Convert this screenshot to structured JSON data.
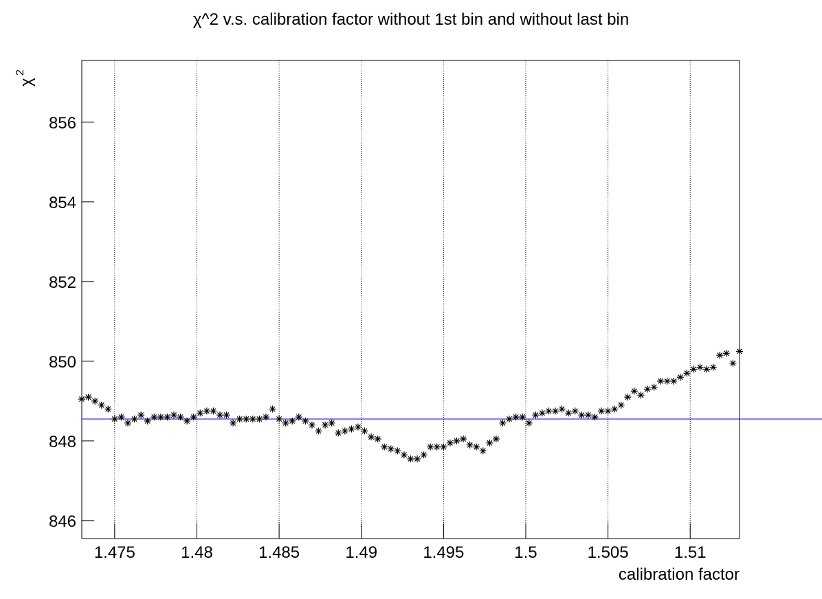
{
  "chart_data": {
    "type": "scatter",
    "title": "χ^2 v.s. calibration factor without 1st bin and without last bin",
    "xlabel": "calibration factor",
    "ylabel": {
      "base": "χ",
      "sup": "2"
    },
    "xlim": [
      1.473,
      1.513
    ],
    "ylim": [
      845.55,
      857.55
    ],
    "xticks": [
      1.475,
      1.48,
      1.485,
      1.49,
      1.495,
      1.5,
      1.505,
      1.51
    ],
    "yticks": [
      846,
      848,
      850,
      852,
      854,
      856
    ],
    "xgrid": true,
    "marker": "asterisk",
    "hline": {
      "value": 848.55,
      "color": "#0000ff"
    },
    "series": [
      {
        "color": "#000000",
        "x": [
          1.473,
          1.4734,
          1.4738,
          1.4742,
          1.4746,
          1.475,
          1.4754,
          1.4758,
          1.4762,
          1.4766,
          1.477,
          1.4774,
          1.4778,
          1.4782,
          1.4786,
          1.479,
          1.4794,
          1.4798,
          1.4802,
          1.4806,
          1.481,
          1.4814,
          1.4818,
          1.4822,
          1.4826,
          1.483,
          1.4834,
          1.4838,
          1.4842,
          1.4846,
          1.485,
          1.4854,
          1.4858,
          1.4862,
          1.4866,
          1.487,
          1.4874,
          1.4878,
          1.4882,
          1.4886,
          1.489,
          1.4894,
          1.4898,
          1.4902,
          1.4906,
          1.491,
          1.4914,
          1.4918,
          1.4922,
          1.4926,
          1.493,
          1.4934,
          1.4938,
          1.4942,
          1.4946,
          1.495,
          1.4954,
          1.4958,
          1.4962,
          1.4966,
          1.497,
          1.4974,
          1.4978,
          1.4982,
          1.4986,
          1.499,
          1.4994,
          1.4998,
          1.5002,
          1.5006,
          1.501,
          1.5014,
          1.5018,
          1.5022,
          1.5026,
          1.503,
          1.5034,
          1.5038,
          1.5042,
          1.5046,
          1.505,
          1.5054,
          1.5058,
          1.5062,
          1.5066,
          1.507,
          1.5074,
          1.5078,
          1.5082,
          1.5086,
          1.509,
          1.5094,
          1.5098,
          1.5102,
          1.5106,
          1.511,
          1.5114,
          1.5118,
          1.5122,
          1.5126,
          1.513
        ],
        "values": [
          849.05,
          849.1,
          849.0,
          848.9,
          848.8,
          848.55,
          848.6,
          848.45,
          848.55,
          848.65,
          848.5,
          848.6,
          848.6,
          848.6,
          848.65,
          848.6,
          848.5,
          848.6,
          848.7,
          848.75,
          848.75,
          848.65,
          848.65,
          848.45,
          848.55,
          848.55,
          848.55,
          848.55,
          848.6,
          848.8,
          848.55,
          848.45,
          848.5,
          848.6,
          848.5,
          848.4,
          848.25,
          848.4,
          848.45,
          848.2,
          848.25,
          848.3,
          848.35,
          848.25,
          848.1,
          848.05,
          847.85,
          847.8,
          847.75,
          847.65,
          847.55,
          847.55,
          847.65,
          847.85,
          847.85,
          847.85,
          847.95,
          848.0,
          848.05,
          847.9,
          847.85,
          847.75,
          847.95,
          848.05,
          848.45,
          848.55,
          848.6,
          848.6,
          848.45,
          848.65,
          848.7,
          848.75,
          848.75,
          848.8,
          848.7,
          848.75,
          848.65,
          848.65,
          848.6,
          848.75,
          848.75,
          848.8,
          848.9,
          849.1,
          849.25,
          849.15,
          849.3,
          849.35,
          849.5,
          849.5,
          849.5,
          849.6,
          849.7,
          849.8,
          849.85,
          849.8,
          849.85,
          850.15,
          850.2,
          849.95,
          850.25
        ]
      }
    ]
  }
}
